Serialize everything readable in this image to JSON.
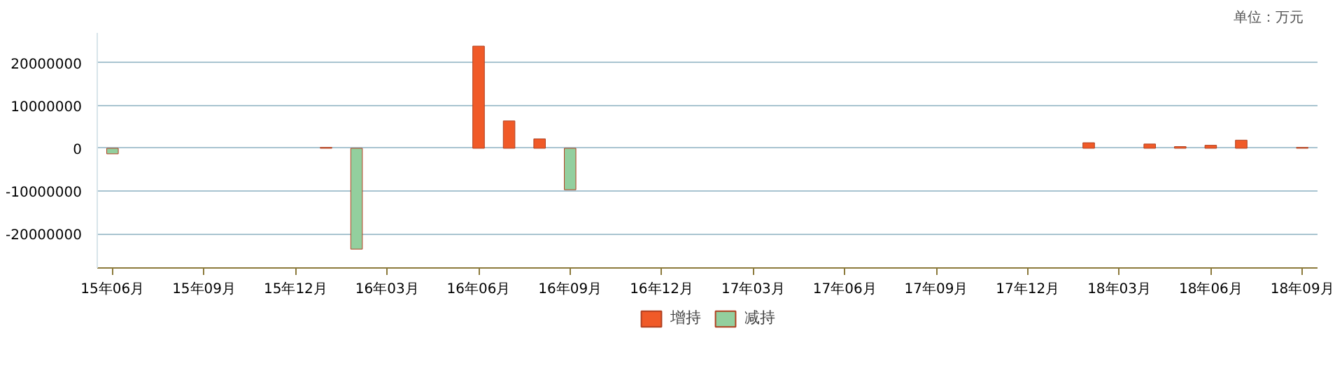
{
  "chart_data": {
    "type": "bar",
    "annotations": [
      "单位：万元"
    ],
    "categories": [
      "15年06月",
      null,
      null,
      "15年09月",
      null,
      null,
      "15年12月",
      null,
      null,
      "16年03月",
      null,
      null,
      "16年06月",
      null,
      null,
      "16年09月",
      null,
      null,
      "16年12月",
      null,
      null,
      "17年03月",
      null,
      null,
      "17年06月",
      null,
      null,
      "17年09月",
      null,
      null,
      "17年12月",
      null,
      null,
      "18年03月",
      null,
      null,
      "18年06月",
      null,
      null,
      "18年09月"
    ],
    "series": [
      {
        "name": "增持",
        "color": "#f05a28",
        "values": [
          null,
          null,
          null,
          null,
          null,
          null,
          null,
          200000,
          null,
          null,
          null,
          null,
          23900000,
          6400000,
          2200000,
          null,
          null,
          null,
          null,
          null,
          null,
          null,
          null,
          null,
          null,
          null,
          null,
          null,
          null,
          null,
          null,
          null,
          1300000,
          null,
          1000000,
          400000,
          700000,
          1900000,
          null,
          200000
        ]
      },
      {
        "name": "减持",
        "color": "#93cf9e",
        "values": [
          -1300000,
          null,
          null,
          null,
          null,
          null,
          null,
          null,
          -23600000,
          null,
          null,
          null,
          null,
          null,
          null,
          -9700000,
          null,
          null,
          null,
          null,
          null,
          null,
          null,
          null,
          null,
          null,
          null,
          null,
          null,
          null,
          null,
          null,
          null,
          null,
          null,
          null,
          null,
          null,
          null,
          null
        ]
      }
    ],
    "ylim": [
      -28000000,
      27000000
    ],
    "yticks": [
      -20000000,
      -10000000,
      0,
      10000000,
      20000000
    ],
    "grid": "y",
    "legend": "bottom"
  }
}
